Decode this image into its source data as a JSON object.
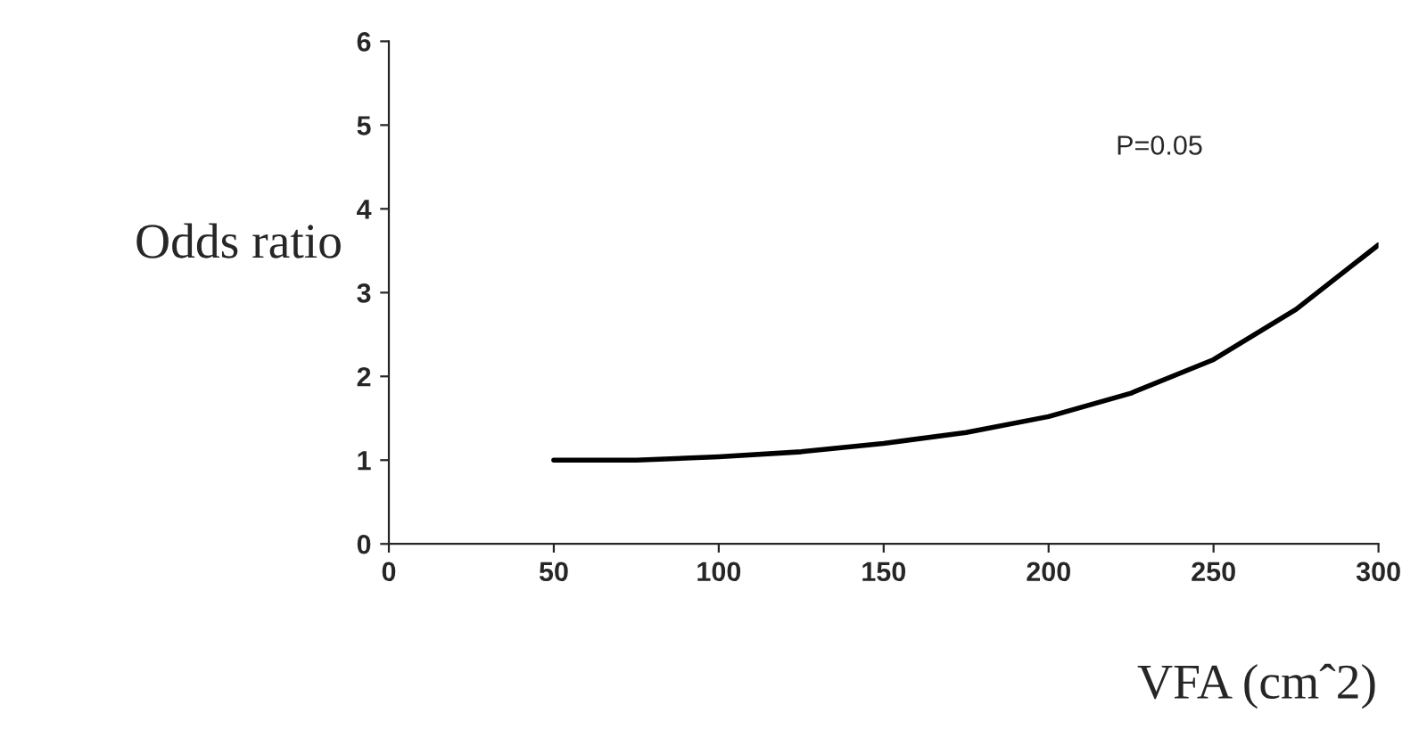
{
  "chart_data": {
    "type": "line",
    "xlabel": "VFA (cmˆ2)",
    "ylabel": "Odds ratio",
    "x": [
      50,
      75,
      100,
      125,
      150,
      175,
      200,
      225,
      250,
      275,
      300
    ],
    "series": [
      {
        "color": "#000000",
        "values": [
          1.0,
          1.0,
          1.04,
          1.1,
          1.2,
          1.33,
          1.52,
          1.8,
          2.2,
          2.8,
          3.57
        ]
      }
    ],
    "xlim": [
      0,
      300
    ],
    "xticks": [
      0,
      50,
      100,
      150,
      200,
      250,
      300
    ],
    "ylim": [
      0,
      6
    ],
    "yticks": [
      0,
      1,
      2,
      3,
      4,
      5,
      6
    ],
    "annotations": [
      "P=0.05"
    ],
    "grid": false,
    "marker": "none",
    "line_style": "solid"
  }
}
